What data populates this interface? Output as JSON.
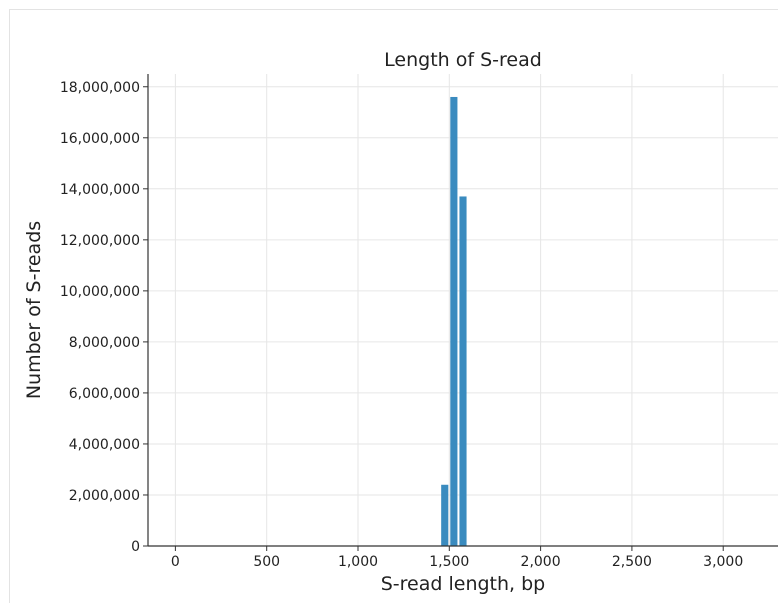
{
  "chart_data": {
    "type": "bar",
    "title": "Length of S-read",
    "xlabel": "S-read length, bp",
    "ylabel": "Number of S-reads",
    "xlim": [
      -150,
      3300
    ],
    "ylim": [
      0,
      18500000
    ],
    "x_ticks": [
      0,
      500,
      1000,
      1500,
      2000,
      2500,
      3000
    ],
    "x_tick_labels": [
      "0",
      "500",
      "1,000",
      "1,500",
      "2,000",
      "2,500",
      "3,000"
    ],
    "y_ticks": [
      0,
      2000000,
      4000000,
      6000000,
      8000000,
      10000000,
      12000000,
      14000000,
      16000000,
      18000000
    ],
    "y_tick_labels": [
      "0",
      "2,000,000",
      "4,000,000",
      "6,000,000",
      "8,000,000",
      "10,000,000",
      "12,000,000",
      "14,000,000",
      "16,000,000",
      "18,000,000"
    ],
    "bar_width": 50,
    "x": [
      1475,
      1525,
      1575
    ],
    "values": [
      2400000,
      17600000,
      13700000
    ],
    "grid": true,
    "legend": "none",
    "bar_color": "#3a8bbf"
  }
}
